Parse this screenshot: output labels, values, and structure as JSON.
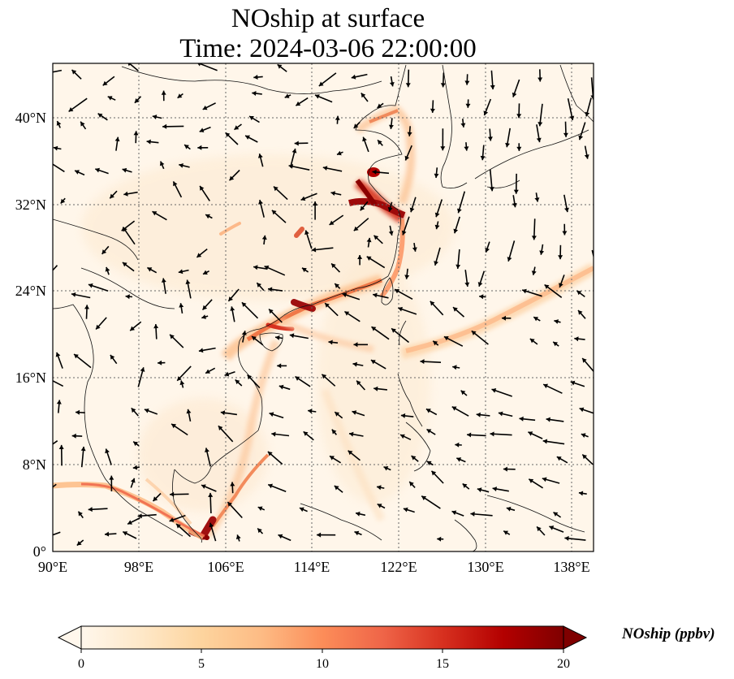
{
  "figure": {
    "title_line1": "NOship at surface",
    "title_line2": "Time: 2024-03-06 22:00:00"
  },
  "map": {
    "lon_ticks": [
      "90°E",
      "98°E",
      "106°E",
      "114°E",
      "122°E",
      "130°E",
      "138°E"
    ],
    "lat_ticks": [
      "0°",
      "8°N",
      "16°N",
      "24°N",
      "32°N",
      "40°N"
    ],
    "lon_range": [
      90,
      140
    ],
    "lat_range": [
      0,
      45
    ],
    "gridlines": "dotted",
    "vector_field": "surface wind arrows"
  },
  "colorbar": {
    "label": "NOship (ppbv)",
    "ticks": [
      "0",
      "5",
      "10",
      "15",
      "20"
    ],
    "range": [
      0,
      20
    ],
    "extend": "both",
    "colormap": "OrRd",
    "colors": [
      "#fff7ec",
      "#fee8c8",
      "#fdd49e",
      "#fdbb84",
      "#fc8d59",
      "#ef6548",
      "#d7301f",
      "#b30000",
      "#7f0000"
    ]
  }
}
